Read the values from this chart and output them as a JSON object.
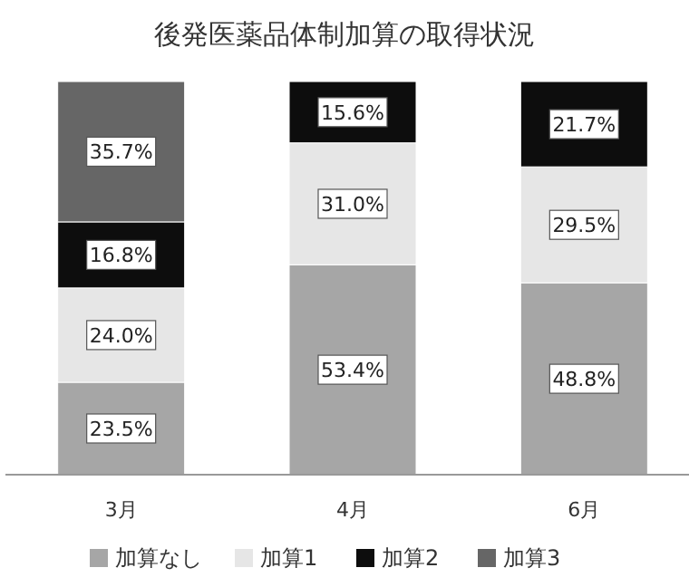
{
  "chart_data": {
    "type": "bar",
    "title": "後発医薬品体制加算の取得状況",
    "categories": [
      "3月",
      "4月",
      "6月"
    ],
    "stacked": true,
    "ylim": [
      0,
      100
    ],
    "legend": "bottom",
    "series": [
      {
        "name": "加算なし",
        "color": "#a6a6a6",
        "values": [
          23.5,
          53.4,
          48.8
        ],
        "value_labels": [
          "23.5%",
          "53.4%",
          "48.8%"
        ]
      },
      {
        "name": "加算1",
        "color": "#e6e6e6",
        "values": [
          24.0,
          31.0,
          29.5
        ],
        "value_labels": [
          "24.0%",
          "31.0%",
          "29.5%"
        ]
      },
      {
        "name": "加算2",
        "color": "#0d0d0d",
        "values": [
          16.8,
          15.6,
          21.7
        ],
        "value_labels": [
          "16.8%",
          "15.6%",
          "21.7%"
        ]
      },
      {
        "name": "加算3",
        "color": "#666666",
        "values": [
          35.7,
          null,
          null
        ],
        "value_labels": [
          "35.7%",
          null,
          null
        ]
      }
    ]
  }
}
